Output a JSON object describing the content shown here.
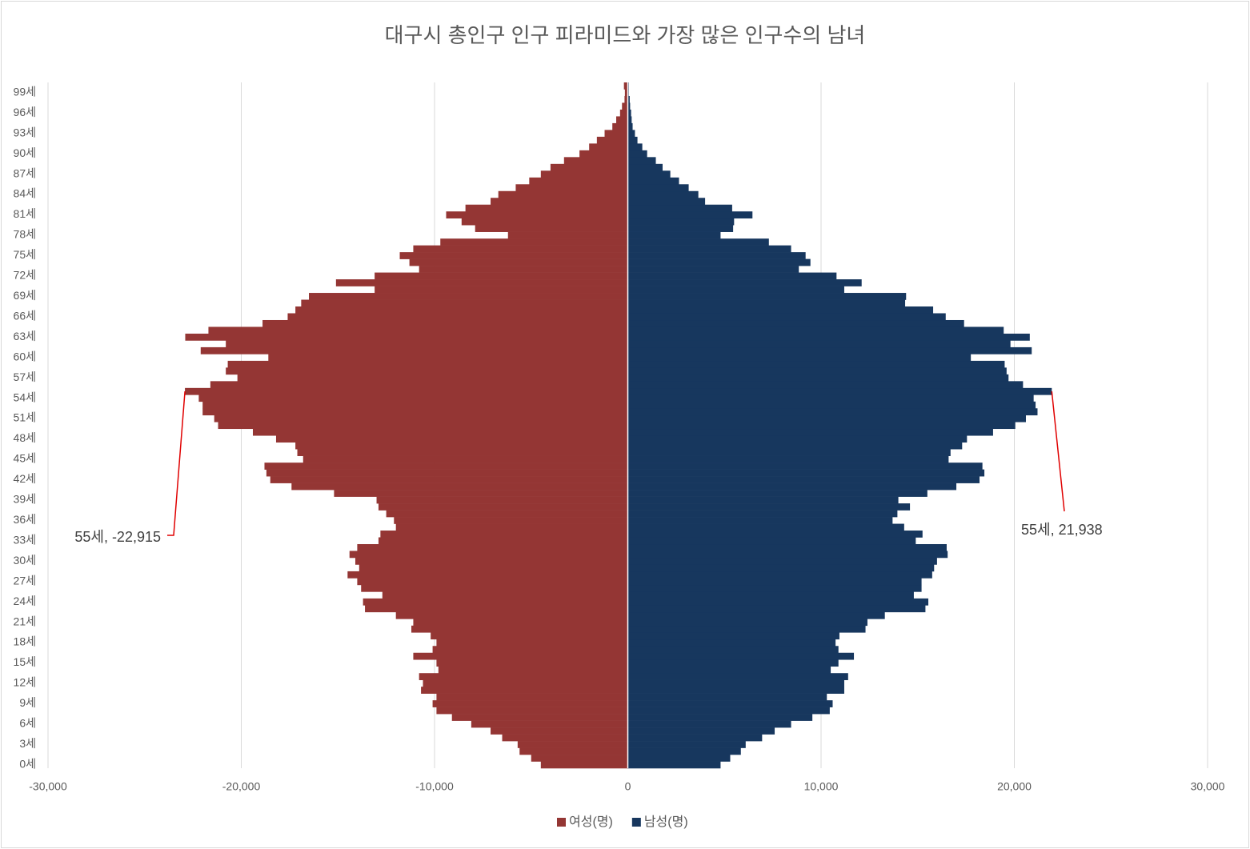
{
  "chart_data": {
    "type": "pyramid",
    "title": "대구시 총인구 인구 피라미드와 가장 많은 인구수의 남녀",
    "categories": [
      "0세",
      null,
      null,
      "3세",
      null,
      null,
      "6세",
      null,
      null,
      "9세",
      null,
      null,
      "12세",
      null,
      null,
      "15세",
      null,
      null,
      "18세",
      null,
      null,
      "21세",
      null,
      null,
      "24세",
      null,
      null,
      "27세",
      null,
      null,
      "30세",
      null,
      null,
      "33세",
      null,
      null,
      "36세",
      null,
      null,
      "39세",
      null,
      null,
      "42세",
      null,
      null,
      "45세",
      null,
      null,
      "48세",
      null,
      null,
      "51세",
      null,
      null,
      "54세",
      null,
      null,
      "57세",
      null,
      null,
      "60세",
      null,
      null,
      "63세",
      null,
      null,
      "66세",
      null,
      null,
      "69세",
      null,
      null,
      "72세",
      null,
      null,
      "75세",
      null,
      null,
      "78세",
      null,
      null,
      "81세",
      null,
      null,
      "84세",
      null,
      null,
      "87세",
      null,
      null,
      "90세",
      null,
      null,
      "93세",
      null,
      null,
      "96세",
      null,
      null,
      "99세",
      null
    ],
    "series": [
      {
        "name": "여성(명)",
        "color": "#943634",
        "values": [
          -4500,
          -5000,
          -5600,
          -5700,
          -6500,
          -7100,
          -8100,
          -9100,
          -9900,
          -10100,
          -9900,
          -10700,
          -10600,
          -10800,
          -9800,
          -9900,
          -11100,
          -10100,
          -9900,
          -10200,
          -11200,
          -11100,
          -12000,
          -13600,
          -13700,
          -12700,
          -13800,
          -14000,
          -14500,
          -13900,
          -14100,
          -14400,
          -14000,
          -12900,
          -12800,
          -12000,
          -12100,
          -12500,
          -12900,
          -13000,
          -15200,
          -17400,
          -18500,
          -18700,
          -18800,
          -16800,
          -17100,
          -17200,
          -18200,
          -19400,
          -21200,
          -21400,
          -22000,
          -22000,
          -22200,
          -22915,
          -21600,
          -20200,
          -20800,
          -20700,
          -18600,
          -22100,
          -20800,
          -22900,
          -21700,
          -18900,
          -17600,
          -17200,
          -16900,
          -16500,
          -13100,
          -15100,
          -13100,
          -10800,
          -11300,
          -11800,
          -11100,
          -9700,
          -6200,
          -7900,
          -8600,
          -9400,
          -8400,
          -7100,
          -6700,
          -5800,
          -5100,
          -4500,
          -4000,
          -3300,
          -2500,
          -2000,
          -1600,
          -1200,
          -800,
          -600,
          -400,
          -300,
          -170,
          -150,
          -200
        ]
      },
      {
        "name": "남성(명)",
        "color": "#17375e",
        "values": [
          4800,
          5300,
          5850,
          6100,
          6950,
          7600,
          8450,
          9550,
          10450,
          10600,
          10300,
          11200,
          11200,
          11400,
          10500,
          10900,
          11700,
          10900,
          10750,
          10950,
          12300,
          12400,
          13300,
          15400,
          15550,
          14800,
          15200,
          15200,
          15750,
          15850,
          16000,
          16550,
          16500,
          14900,
          15250,
          14300,
          13700,
          13950,
          14600,
          14000,
          15500,
          17000,
          18200,
          18450,
          18350,
          16600,
          16700,
          17300,
          17550,
          18900,
          20050,
          20600,
          21200,
          21100,
          21000,
          21938,
          20450,
          19700,
          19600,
          19500,
          17750,
          20900,
          19800,
          20800,
          19450,
          17400,
          16450,
          15800,
          14350,
          14400,
          11200,
          12100,
          10800,
          8850,
          9450,
          9200,
          8450,
          7300,
          4800,
          5450,
          5500,
          6450,
          5400,
          4000,
          3650,
          3150,
          2650,
          2200,
          1800,
          1450,
          1000,
          750,
          500,
          370,
          250,
          200,
          170,
          120,
          100,
          50,
          50
        ]
      }
    ],
    "xlim": [
      -30000,
      30000
    ],
    "xticks": [
      {
        "value": -30000,
        "label": "-30,000"
      },
      {
        "value": -20000,
        "label": "-20,000"
      },
      {
        "value": -10000,
        "label": "-10,000"
      },
      0,
      {
        "value": 10000,
        "label": "10,000"
      },
      {
        "value": 20000,
        "label": "20,000"
      },
      {
        "value": 30000,
        "label": "30,000"
      }
    ],
    "grid": true,
    "legend": "bottom",
    "annotations": [
      "55세, -22,915",
      "55세, 21,938"
    ]
  }
}
